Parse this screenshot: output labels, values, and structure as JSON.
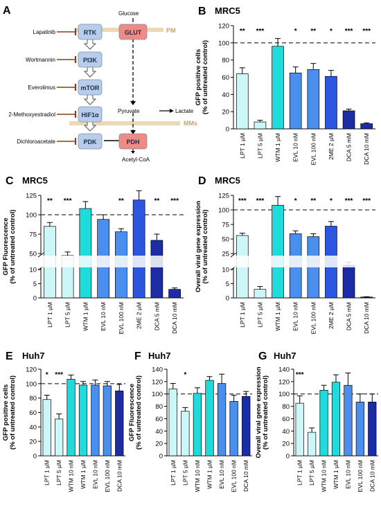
{
  "pathway": {
    "panel_letter": "A",
    "glucose": "Glucose",
    "pm": "PM",
    "mms": "MMs",
    "pyruvate": "Pyruvate",
    "lactate": "Lactate",
    "acetyl_coa": "Acetyl-CoA",
    "nodes": [
      {
        "label": "RTK",
        "color": "#b7cdea"
      },
      {
        "label": "PI3K",
        "color": "#b7cdea"
      },
      {
        "label": "mTOR",
        "color": "#b7cdea"
      },
      {
        "label": "HIF1α",
        "color": "#b7cdea"
      },
      {
        "label": "PDK",
        "color": "#b7cdea"
      },
      {
        "label": "GLUT",
        "color": "#f08a84"
      },
      {
        "label": "PDH",
        "color": "#f08a84"
      }
    ],
    "inhibitors": [
      "Lapatinib",
      "Wortmannin",
      "Everolimus",
      "2-Methoxyestradiol",
      "Dichloroacetate"
    ]
  },
  "chart_data": [
    {
      "panel": "B",
      "title": "MRC5",
      "type": "bar",
      "ylabel_line1": "GFP positive cells",
      "ylabel_line2": "(% of untreated control)",
      "ylim": [
        0,
        120
      ],
      "yticks": [
        0,
        20,
        40,
        60,
        80,
        100,
        120
      ],
      "reference": 100,
      "categories": [
        "LPT 1 µM",
        "LPT 5 µM",
        "WTM 1 µM",
        "EVL 10 nM",
        "EVL 100 nM",
        "2ME 2 µM",
        "DCA 5 mM",
        "DCA 10 mM"
      ],
      "values": [
        64,
        8,
        96,
        65,
        69,
        61,
        21,
        6
      ],
      "errors": [
        7,
        2,
        9,
        7,
        7,
        7,
        2,
        1
      ],
      "colors": [
        "#ccf6f8",
        "#ccf6f8",
        "#1fdcdc",
        "#4a8fee",
        "#4a8fee",
        "#2a56e2",
        "#1c2ba6",
        "#1c2ba6"
      ],
      "significance": [
        "**",
        "***",
        "",
        "*",
        "**",
        "*",
        "***",
        "***"
      ]
    },
    {
      "panel": "C",
      "title": "MRC5",
      "type": "bar",
      "ylabel_line1": "GFP Fluorescence",
      "ylabel_line2": "(% of untreated control)",
      "ylim": [
        0,
        125
      ],
      "yticks": [
        0,
        5,
        10,
        50,
        75,
        100,
        125
      ],
      "reference": 100,
      "categories": [
        "LPT 1 µM",
        "LPT 5 µM",
        "WTM 1 µM",
        "EVL 10 nM",
        "EVL 100 nM",
        "2ME 2 µM",
        "DCA 5 mM",
        "DCA 10 mM"
      ],
      "values": [
        85,
        45,
        108,
        94,
        78,
        119,
        67,
        3
      ],
      "errors": [
        5,
        7,
        9,
        6,
        4,
        12,
        8,
        0.5
      ],
      "colors": [
        "#ccf6f8",
        "#ccf6f8",
        "#1fdcdc",
        "#4a8fee",
        "#4a8fee",
        "#2a56e2",
        "#1c2ba6",
        "#1c2ba6"
      ],
      "significance": [
        "**",
        "***",
        "",
        "",
        "**",
        "",
        "**",
        "***"
      ]
    },
    {
      "panel": "D",
      "title": "MRC5",
      "type": "bar",
      "ylabel_line1": "Overall viral gene expression",
      "ylabel_line2": "(% of untreated control)",
      "ylim": [
        0,
        125
      ],
      "yticks": [
        0,
        5,
        10,
        25,
        50,
        75,
        100,
        125
      ],
      "reference": 100,
      "categories": [
        "LPT 1 µM",
        "LPT 5 µM",
        "WTM 1 µM",
        "EVL 10 nM",
        "EVL 100 nM",
        "2ME 2 µM",
        "DCA 5 mM",
        "DCA 10 mM"
      ],
      "values": [
        56,
        3,
        108,
        59,
        54,
        72,
        14,
        0.3
      ],
      "errors": [
        4,
        1,
        15,
        5,
        5,
        8,
        3,
        0.1
      ],
      "colors": [
        "#ccf6f8",
        "#ccf6f8",
        "#1fdcdc",
        "#4a8fee",
        "#4a8fee",
        "#2a56e2",
        "#1c2ba6",
        "#1c2ba6"
      ],
      "significance": [
        "***",
        "***",
        "",
        "*",
        "**",
        "*",
        "***",
        "***"
      ]
    },
    {
      "panel": "E",
      "title": "Huh7",
      "type": "bar",
      "ylabel_line1": "GFP positive cells",
      "ylabel_line2": "(% of untreated control)",
      "ylim": [
        0,
        120
      ],
      "yticks": [
        0,
        20,
        40,
        60,
        80,
        100,
        120
      ],
      "reference": 100,
      "categories": [
        "LPT 1 µM",
        "LPT 5 µM",
        "WTM 10 nM",
        "WTM 1 µM",
        "EVL 10 nM",
        "EVL 100 nM",
        "DCA 10 mM"
      ],
      "values": [
        78,
        51,
        106,
        98,
        98,
        97,
        90
      ],
      "errors": [
        6,
        7,
        6,
        5,
        7,
        6,
        9
      ],
      "colors": [
        "#ccf6f8",
        "#ccf6f8",
        "#1fdcdc",
        "#1fdcdc",
        "#4a8fee",
        "#4a8fee",
        "#1c2ba6"
      ],
      "significance": [
        "*",
        "***",
        "",
        "",
        "",
        "",
        ""
      ]
    },
    {
      "panel": "F",
      "title": "Huh7",
      "type": "bar",
      "ylabel_line1": "GFP Fluorescence",
      "ylabel_line2": "(% of untreated control)",
      "ylim": [
        0,
        140
      ],
      "yticks": [
        0,
        20,
        40,
        60,
        80,
        100,
        120,
        140
      ],
      "reference": 100,
      "categories": [
        "LPT 1 µM",
        "LPT 5 µM",
        "WTM 10 nM",
        "WTM 1 µM",
        "EVL 10 nM",
        "EVL 100 nM",
        "DCA 10 mM"
      ],
      "values": [
        108,
        72,
        101,
        122,
        117,
        88,
        96
      ],
      "errors": [
        9,
        6,
        9,
        6,
        15,
        10,
        8
      ],
      "colors": [
        "#ccf6f8",
        "#ccf6f8",
        "#1fdcdc",
        "#1fdcdc",
        "#4a8fee",
        "#4a8fee",
        "#1c2ba6"
      ],
      "significance": [
        "",
        "*",
        "",
        "",
        "",
        "",
        ""
      ]
    },
    {
      "panel": "G",
      "title": "Huh7",
      "type": "bar",
      "ylabel_line1": "Overall viral gene expression",
      "ylabel_line2": "(% of untreated control)",
      "ylim": [
        0,
        140
      ],
      "yticks": [
        0,
        20,
        40,
        60,
        80,
        100,
        120,
        140
      ],
      "reference": 100,
      "categories": [
        "LPT 1 µM",
        "LPT 5 µM",
        "WTM 10 nM",
        "WTM 1 µM",
        "EVL 10 nM",
        "EVL 100 nM",
        "DCA 10 mM"
      ],
      "values": [
        85,
        38,
        106,
        119,
        114,
        87,
        87
      ],
      "errors": [
        12,
        7,
        8,
        12,
        20,
        13,
        13
      ],
      "colors": [
        "#ccf6f8",
        "#ccf6f8",
        "#1fdcdc",
        "#1fdcdc",
        "#4a8fee",
        "#4a8fee",
        "#1c2ba6"
      ],
      "significance": [
        "***",
        "",
        "",
        "",
        "",
        "",
        ""
      ]
    }
  ]
}
